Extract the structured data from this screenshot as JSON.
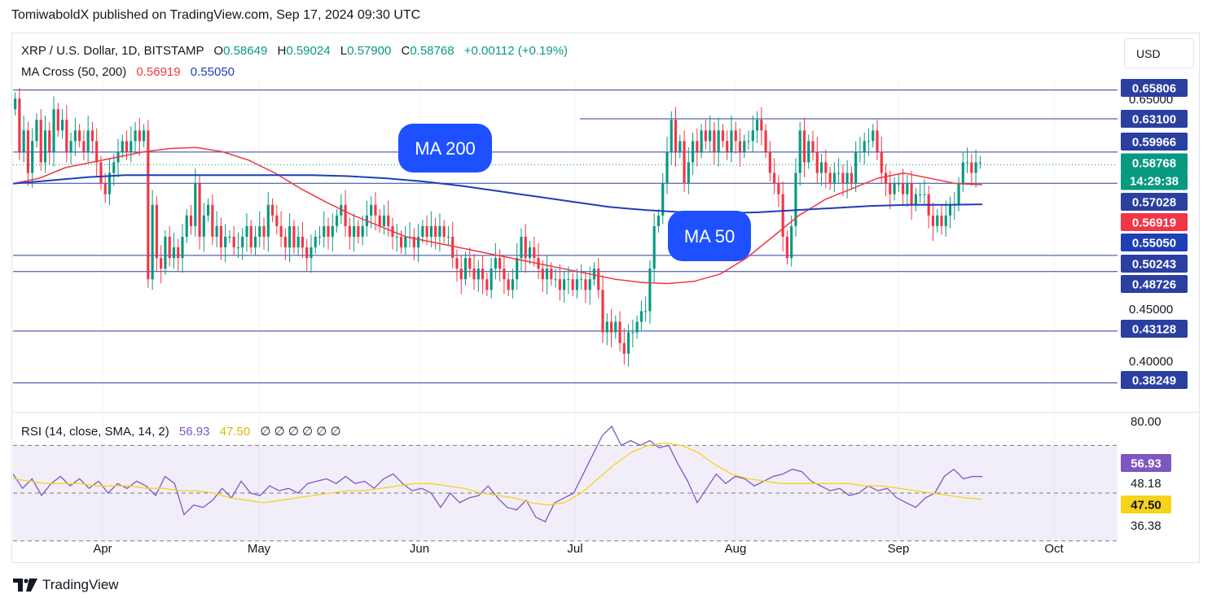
{
  "header": {
    "publisher": "TomiwaboldX published on TradingView.com, Sep 17, 2024 09:30 UTC"
  },
  "toolbar": {
    "currency_label": "USD"
  },
  "legend": {
    "symbol": "XRP / U.S. Dollar, 1D, BITSTAMP",
    "o_label": "O",
    "o_value": "0.58649",
    "h_label": "H",
    "h_value": "0.59024",
    "l_label": "L",
    "l_value": "0.57900",
    "c_label": "C",
    "c_value": "0.58768",
    "change": "+0.00112 (+0.19%)",
    "ma_label": "MA Cross (50, 200)",
    "ma50_value": "0.56919",
    "ma200_value": "0.55050",
    "rsi_label": "RSI (14, close, SMA, 14, 2)",
    "rsi_value": "56.93",
    "rsi_sma_value": "47.50",
    "rsi_extra": "∅ ∅ ∅ ∅ ∅ ∅"
  },
  "footer": {
    "brand": "TradingView"
  },
  "colors": {
    "up": "#089981",
    "down": "#f23645",
    "ma50": "#f23645",
    "ma200": "#1e3fb5",
    "line": "#2a3fa0",
    "rsi": "#7e57c2",
    "rsi_sma": "#f7d31a",
    "label_bg": "#1e50ff"
  },
  "chart_data": {
    "type": "candlestick",
    "title": "XRP / U.S. Dollar, 1D, BITSTAMP",
    "price_axis": {
      "min": 0.36,
      "max": 0.67,
      "ticks": [
        "0.65000",
        "0.45000",
        "0.40000"
      ]
    },
    "x_ticks": [
      "Apr",
      "May",
      "Jun",
      "Jul",
      "Aug",
      "Sep",
      "Oct"
    ],
    "candles_close": [
      0.65,
      0.6,
      0.62,
      0.58,
      0.61,
      0.63,
      0.59,
      0.62,
      0.6,
      0.64,
      0.62,
      0.63,
      0.6,
      0.61,
      0.62,
      0.61,
      0.6,
      0.62,
      0.61,
      0.59,
      0.57,
      0.56,
      0.58,
      0.59,
      0.6,
      0.61,
      0.6,
      0.61,
      0.62,
      0.61,
      0.62,
      0.48,
      0.55,
      0.5,
      0.49,
      0.52,
      0.5,
      0.51,
      0.5,
      0.52,
      0.54,
      0.53,
      0.57,
      0.52,
      0.54,
      0.55,
      0.52,
      0.53,
      0.51,
      0.52,
      0.52,
      0.51,
      0.51,
      0.52,
      0.53,
      0.51,
      0.52,
      0.53,
      0.52,
      0.55,
      0.54,
      0.53,
      0.52,
      0.51,
      0.53,
      0.51,
      0.52,
      0.51,
      0.5,
      0.51,
      0.52,
      0.52,
      0.53,
      0.52,
      0.53,
      0.54,
      0.55,
      0.53,
      0.52,
      0.53,
      0.52,
      0.53,
      0.54,
      0.55,
      0.54,
      0.53,
      0.54,
      0.53,
      0.52,
      0.52,
      0.51,
      0.52,
      0.52,
      0.51,
      0.52,
      0.53,
      0.52,
      0.53,
      0.52,
      0.53,
      0.52,
      0.52,
      0.5,
      0.49,
      0.48,
      0.5,
      0.49,
      0.48,
      0.49,
      0.48,
      0.47,
      0.49,
      0.5,
      0.49,
      0.48,
      0.47,
      0.48,
      0.5,
      0.52,
      0.5,
      0.51,
      0.5,
      0.49,
      0.48,
      0.49,
      0.48,
      0.48,
      0.47,
      0.48,
      0.48,
      0.47,
      0.48,
      0.48,
      0.47,
      0.48,
      0.49,
      0.47,
      0.43,
      0.44,
      0.43,
      0.44,
      0.42,
      0.41,
      0.43,
      0.43,
      0.44,
      0.45,
      0.45,
      0.49,
      0.53,
      0.54,
      0.57,
      0.6,
      0.63,
      0.6,
      0.61,
      0.57,
      0.59,
      0.61,
      0.6,
      0.62,
      0.61,
      0.62,
      0.6,
      0.62,
      0.61,
      0.6,
      0.62,
      0.61,
      0.6,
      0.61,
      0.61,
      0.62,
      0.63,
      0.62,
      0.6,
      0.58,
      0.57,
      0.56,
      0.52,
      0.5,
      0.53,
      0.58,
      0.62,
      0.59,
      0.61,
      0.6,
      0.58,
      0.59,
      0.58,
      0.57,
      0.58,
      0.58,
      0.57,
      0.58,
      0.57,
      0.6,
      0.6,
      0.61,
      0.61,
      0.62,
      0.6,
      0.58,
      0.57,
      0.56,
      0.57,
      0.57,
      0.56,
      0.57,
      0.55,
      0.56,
      0.56,
      0.56,
      0.54,
      0.53,
      0.54,
      0.53,
      0.54,
      0.55,
      0.55,
      0.57,
      0.59,
      0.59,
      0.58,
      0.59,
      0.59
    ],
    "horizontal_levels": [
      0.65806,
      0.631,
      0.59966,
      0.57028,
      0.50243,
      0.48726,
      0.43128,
      0.38249
    ],
    "price_labels": [
      {
        "text": "0.65806",
        "kind": "line"
      },
      {
        "text": "0.63100",
        "kind": "line"
      },
      {
        "text": "0.59966",
        "kind": "line"
      },
      {
        "text": "0.58768",
        "kind": "last"
      },
      {
        "text": "14:29:38",
        "kind": "timer"
      },
      {
        "text": "0.57028",
        "kind": "line"
      },
      {
        "text": "0.56919",
        "kind": "ma50"
      },
      {
        "text": "0.55050",
        "kind": "ma200"
      },
      {
        "text": "0.50243",
        "kind": "line"
      },
      {
        "text": "0.48726",
        "kind": "line"
      },
      {
        "text": "0.43128",
        "kind": "line"
      },
      {
        "text": "0.38249",
        "kind": "line"
      }
    ],
    "annotations": [
      "MA 200",
      "MA 50"
    ],
    "ma50": [
      0.57,
      0.575,
      0.585,
      0.59,
      0.595,
      0.6,
      0.603,
      0.604,
      0.6,
      0.592,
      0.58,
      0.565,
      0.552,
      0.54,
      0.53,
      0.52,
      0.515,
      0.51,
      0.505,
      0.5,
      0.495,
      0.49,
      0.485,
      0.48,
      0.477,
      0.476,
      0.478,
      0.485,
      0.5,
      0.52,
      0.54,
      0.555,
      0.565,
      0.575,
      0.58,
      0.575,
      0.57,
      0.569
    ],
    "ma200": [
      0.57,
      0.573,
      0.576,
      0.578,
      0.578,
      0.578,
      0.578,
      0.578,
      0.578,
      0.577,
      0.575,
      0.572,
      0.568,
      0.563,
      0.558,
      0.553,
      0.548,
      0.545,
      0.543,
      0.542,
      0.543,
      0.545,
      0.547,
      0.549,
      0.55,
      0.55,
      0.5505
    ],
    "rsi_axis": {
      "min": 36.38,
      "max": 80.0,
      "ticks": [
        "80.00",
        "48.18",
        "36.38"
      ]
    },
    "rsi_labels": [
      {
        "text": "56.93",
        "kind": "rsi"
      },
      {
        "text": "48.18",
        "kind": "plain"
      },
      {
        "text": "47.50",
        "kind": "sma"
      }
    ],
    "rsi": [
      58,
      52,
      56,
      49,
      54,
      57,
      53,
      56,
      52,
      55,
      50,
      54,
      52,
      55,
      53,
      49,
      57,
      54,
      41,
      45,
      44,
      47,
      52,
      48,
      55,
      50,
      49,
      53,
      51,
      52,
      50,
      54,
      55,
      56,
      54,
      57,
      54,
      55,
      52,
      56,
      58,
      54,
      51,
      52,
      50,
      44,
      50,
      46,
      48,
      49,
      53,
      48,
      44,
      43,
      47,
      40,
      38,
      46,
      48,
      50,
      58,
      66,
      74,
      78,
      70,
      72,
      70,
      72,
      69,
      70,
      62,
      55,
      46,
      52,
      58,
      54,
      57,
      56,
      53,
      55,
      57,
      58,
      60,
      59,
      55,
      53,
      51,
      52,
      49,
      50,
      53,
      51,
      52,
      48,
      46,
      44,
      48,
      50,
      57,
      60,
      56,
      57,
      56.93
    ],
    "rsi_sma": [
      56,
      55,
      54,
      54,
      54,
      53,
      53,
      53,
      52,
      52,
      51,
      51,
      50,
      48,
      47,
      46,
      47,
      48,
      49,
      50,
      51,
      51,
      52,
      53,
      54,
      54,
      53,
      52,
      50,
      49,
      48,
      46,
      45,
      46,
      50,
      56,
      62,
      67,
      70,
      71,
      70,
      67,
      62,
      58,
      56,
      55,
      54,
      54,
      54,
      54,
      54,
      53,
      53,
      52,
      51,
      50,
      49,
      48,
      47.5
    ],
    "rsi_bands": [
      70,
      50,
      30
    ]
  }
}
